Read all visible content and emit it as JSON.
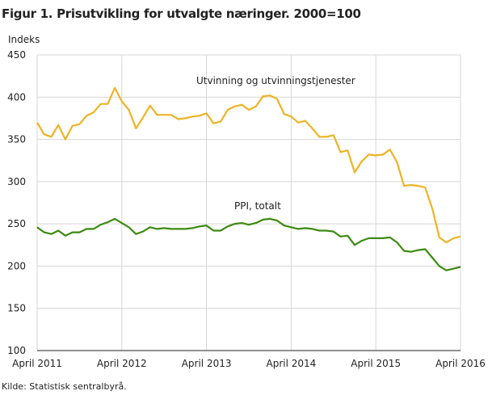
{
  "chart_data": {
    "type": "line",
    "title": "Figur 1. Prisutvikling for utvalgte næringer. 2000=100",
    "ylabel": "Indeks",
    "xlabel": "",
    "ylim": [
      100,
      450
    ],
    "yticks": [
      "100",
      "150",
      "200",
      "250",
      "300",
      "350",
      "400",
      "450"
    ],
    "xticks": [
      "April 2011",
      "April 2012",
      "April 2013",
      "April 2014",
      "April 2015",
      "April 2016"
    ],
    "x_start": "April 2011",
    "x_end": "April 2016",
    "frequency": "monthly",
    "grid": true,
    "series": [
      {
        "name": "Utvinning og utvinningstjenester",
        "color": "#efb325",
        "values": [
          370,
          356,
          353,
          367,
          350,
          366,
          368,
          378,
          382,
          392,
          392,
          411,
          395,
          385,
          363,
          376,
          390,
          379,
          379,
          379,
          374,
          375,
          377,
          378,
          381,
          369,
          371,
          385,
          389,
          391,
          385,
          389,
          401,
          402,
          398,
          380,
          377,
          370,
          372,
          363,
          353,
          353,
          355,
          335,
          337,
          311,
          324,
          332,
          331,
          332,
          338,
          323,
          295,
          296,
          295,
          293,
          268,
          234,
          228,
          233,
          235
        ]
      },
      {
        "name": "PPI, totalt",
        "color": "#3d8a12",
        "values": [
          246,
          240,
          238,
          242,
          236,
          240,
          240,
          244,
          244,
          249,
          252,
          256,
          251,
          246,
          238,
          241,
          246,
          244,
          245,
          244,
          244,
          244,
          245,
          247,
          248,
          242,
          242,
          247,
          250,
          251,
          249,
          251,
          255,
          256,
          254,
          248,
          246,
          244,
          245,
          244,
          242,
          242,
          241,
          235,
          236,
          225,
          230,
          233,
          233,
          233,
          234,
          228,
          218,
          217,
          219,
          220,
          210,
          200,
          195,
          197,
          199
        ]
      }
    ]
  },
  "source": "Kilde: Statistisk sentralbyrå."
}
